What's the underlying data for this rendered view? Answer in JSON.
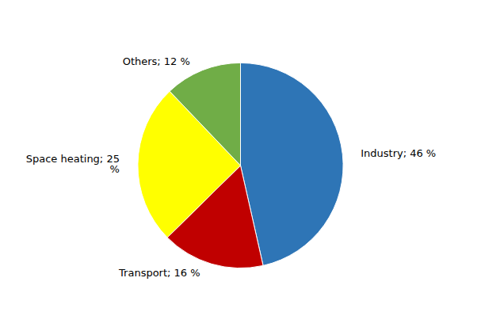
{
  "chart_data": {
    "type": "pie",
    "values": [
      46,
      16,
      25,
      12
    ],
    "value_labels": [
      "Industry; 46 %",
      "Transport; 16 %",
      "Space heating; 25\n%",
      "Others; 12 %"
    ],
    "colors": [
      "#2E75B6",
      "#C00000",
      "#FFFF00",
      "#70AD47"
    ],
    "data_labels": true
  }
}
